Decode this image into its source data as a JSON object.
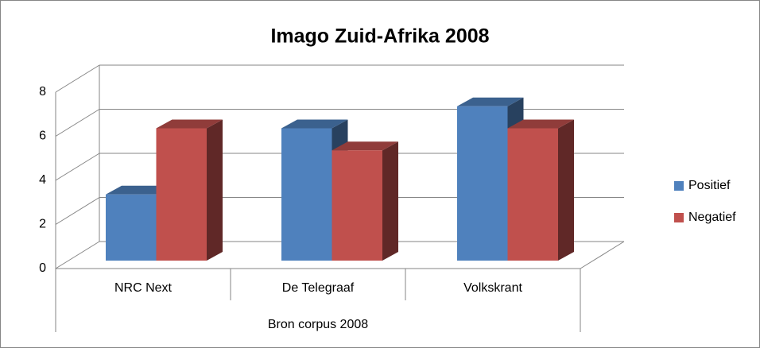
{
  "chart_data": {
    "type": "bar3d",
    "title": "Imago Zuid-Afrika 2008",
    "x_label": "Bron corpus 2008",
    "categories": [
      "NRC Next",
      "De Telegraaf",
      "Volkskrant"
    ],
    "series": [
      {
        "name": "Positief",
        "color": "#4f81bd",
        "values": [
          3,
          6,
          7
        ]
      },
      {
        "name": "Negatief",
        "color": "#c0504d",
        "values": [
          6,
          5,
          6
        ]
      }
    ],
    "ylim": [
      0,
      8
    ],
    "yticks": [
      0,
      2,
      4,
      6,
      8
    ],
    "grid": true,
    "legend": "right"
  }
}
